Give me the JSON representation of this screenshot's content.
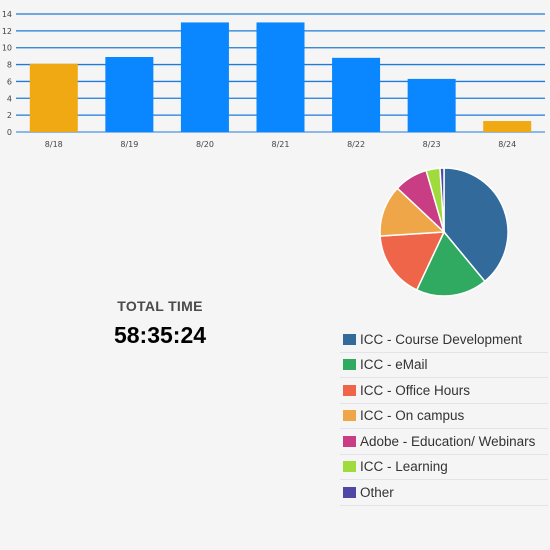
{
  "colors": {
    "bar_default": "#0a86ff",
    "bar_highlight": "#f0a913",
    "grid_line": "#1f7bd8",
    "axis_text": "#444444",
    "background": "#f5f5f6"
  },
  "chart_data": [
    {
      "type": "bar",
      "categories": [
        "8/18",
        "8/19",
        "8/20",
        "8/21",
        "8/22",
        "8/23",
        "8/24"
      ],
      "values": [
        8.1,
        8.9,
        13.0,
        13.0,
        8.8,
        6.3,
        1.3
      ],
      "highlighted": [
        "8/18",
        "8/24"
      ],
      "yticks": [
        0,
        2,
        4,
        6,
        8,
        10,
        12,
        14
      ],
      "ylim": [
        0,
        14
      ],
      "grid": true,
      "title": "",
      "xlabel": "",
      "ylabel": ""
    },
    {
      "type": "pie",
      "labels": [
        "ICC - Course Development",
        "ICC - eMail",
        "ICC - Office Hours",
        "ICC - On campus",
        "Adobe - Education/ Webinars",
        "ICC - Learning",
        "Other"
      ],
      "values": [
        39,
        18,
        17,
        13,
        8.5,
        3.5,
        1
      ],
      "colors": [
        "#326a9c",
        "#2faa60",
        "#ee6549",
        "#efa649",
        "#c83d84",
        "#9fdb3c",
        "#5046a6"
      ]
    }
  ],
  "summary": {
    "total_label": "TOTAL TIME",
    "total_value": "58:35:24"
  },
  "legend": {
    "items": [
      {
        "label": "ICC - Course Development",
        "color": "#326a9c"
      },
      {
        "label": "ICC - eMail",
        "color": "#2faa60"
      },
      {
        "label": "ICC - Office Hours",
        "color": "#ee6549"
      },
      {
        "label": "ICC - On campus",
        "color": "#efa649"
      },
      {
        "label": "Adobe - Education/ Webinars",
        "color": "#c83d84"
      },
      {
        "label": "ICC - Learning",
        "color": "#9fdb3c"
      },
      {
        "label": "Other",
        "color": "#5046a6"
      }
    ]
  }
}
